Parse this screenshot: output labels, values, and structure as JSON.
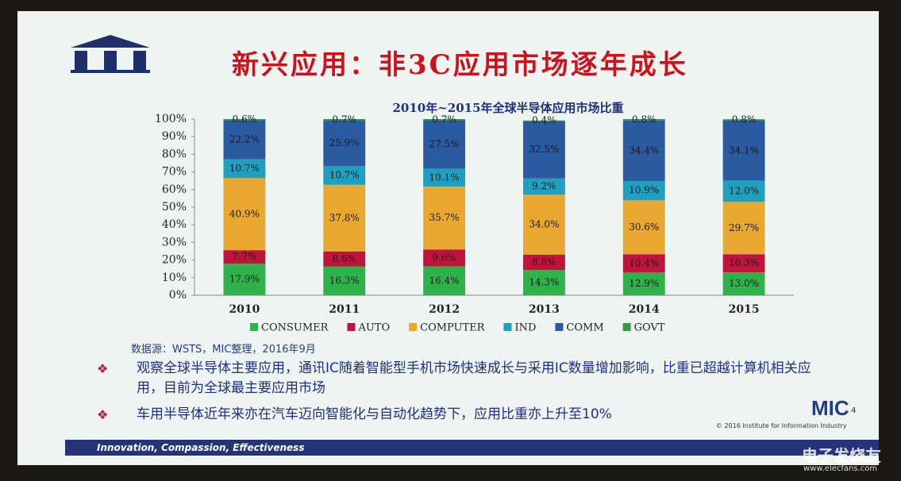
{
  "slide": {
    "title": "新兴应用：非3C应用市场逐年成长",
    "source": "数据源：WSTS，MIC整理，2016年9月",
    "bullets": [
      "观察全球半导体主要应用，通讯IC随着智能型手机市场快速成长与采用IC数量增加影响，比重已超越计算机相关应用，目前为全球最主要应用市场",
      "车用半导体近年来亦在汽车迈向智能化与自动化趋势下，应用比重亦上升至10%"
    ],
    "logo": "MIC",
    "page_number": "4",
    "copyright": "© 2016 Institute for Information Industry",
    "footer": "Innovation, Compassion, Effectiveness",
    "watermark": "电子发烧友",
    "watermark_url": "www.elecfans.com"
  },
  "chart_data": {
    "type": "stacked_bar",
    "title": "2010年~2015年全球半导体应用市场比重",
    "categories": [
      "2010",
      "2011",
      "2012",
      "2013",
      "2014",
      "2015"
    ],
    "series": [
      {
        "name": "CONSUMER",
        "color": "#2db34a",
        "values": [
          17.9,
          16.3,
          16.4,
          14.3,
          12.9,
          13.0
        ],
        "value_labels": [
          "17.9%",
          "16.3%",
          "16.4%",
          "14.3%",
          "12.9%",
          "13.0%"
        ]
      },
      {
        "name": "AUTO",
        "color": "#c0143c",
        "values": [
          7.7,
          8.6,
          9.6,
          8.8,
          10.4,
          10.3
        ],
        "value_labels": [
          "7.7%",
          "8.6%",
          "9.6%",
          "8.8%",
          "10.4%",
          "10.3%"
        ]
      },
      {
        "name": "COMPUTER",
        "color": "#e8a830",
        "values": [
          40.9,
          37.8,
          35.7,
          34.0,
          30.6,
          29.7
        ],
        "value_labels": [
          "40.9%",
          "37.8%",
          "35.7%",
          "34.0%",
          "30.6%",
          "29.7%"
        ]
      },
      {
        "name": "IND",
        "color": "#1fa0c0",
        "values": [
          10.7,
          10.7,
          10.1,
          9.2,
          10.9,
          12.0
        ],
        "value_labels": [
          "10.7%",
          "10.7%",
          "10.1%",
          "9.2%",
          "10.9%",
          "12.0%"
        ]
      },
      {
        "name": "COMM",
        "color": "#2c5aa0",
        "values": [
          22.2,
          25.9,
          27.5,
          32.5,
          34.4,
          34.1
        ],
        "value_labels": [
          "22.2%",
          "25.9%",
          "27.5%",
          "32.5%",
          "34.4%",
          "34.1%"
        ]
      },
      {
        "name": "GOVT",
        "color": "#3a9a40",
        "values": [
          0.6,
          0.7,
          0.7,
          0.4,
          0.8,
          0.8
        ],
        "value_labels": [
          "0.6%",
          "0.7%",
          "0.7%",
          "0.4%",
          "0.8%",
          "0.8%"
        ]
      }
    ],
    "ylim": [
      0,
      100
    ],
    "yticks": [
      {
        "value": 0,
        "label": "0%"
      },
      {
        "value": 10,
        "label": "10%"
      },
      {
        "value": 20,
        "label": "20%"
      },
      {
        "value": 30,
        "label": "30%"
      },
      {
        "value": 40,
        "label": "40%"
      },
      {
        "value": 50,
        "label": "50%"
      },
      {
        "value": 60,
        "label": "60%"
      },
      {
        "value": 70,
        "label": "70%"
      },
      {
        "value": 80,
        "label": "80%"
      },
      {
        "value": 90,
        "label": "90%"
      },
      {
        "value": 100,
        "label": "100%"
      }
    ],
    "grid": false
  }
}
